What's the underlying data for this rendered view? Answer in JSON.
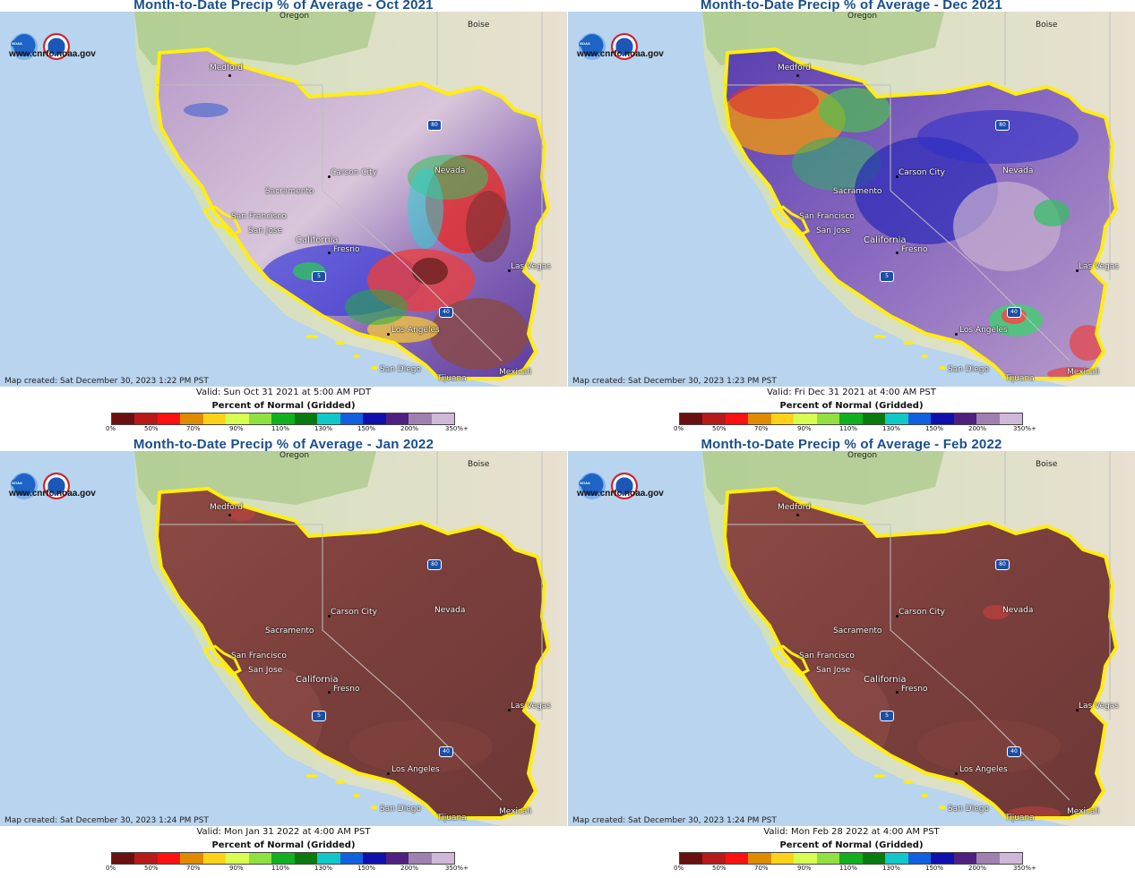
{
  "panels": [
    {
      "title": "Month-to-Date Precip % of Average - Oct 2021",
      "map_created": "Map created: Sat December 30, 2023 1:22 PM PST",
      "valid": "Valid: Sun Oct 31 2021 at 5:00 AM PDT",
      "style": "oct"
    },
    {
      "title": "Month-to-Date Precip % of Average - Dec 2021",
      "map_created": "Map created: Sat December 30, 2023 1:23 PM PST",
      "valid": "Valid: Fri Dec 31 2021 at 4:00 AM PST",
      "style": "dec"
    },
    {
      "title": "Month-to-Date Precip % of Average - Jan 2022",
      "map_created": "Map created: Sat December 30, 2023 1:24 PM PST",
      "valid": "Valid: Mon Jan 31 2022 at 4:00 AM PST",
      "style": "jan"
    },
    {
      "title": "Month-to-Date Precip % of Average - Feb 2022",
      "map_created": "Map created: Sat December 30, 2023 1:24 PM PST",
      "valid": "Valid: Mon Feb 28 2022 at 4:00 AM PST",
      "style": "feb"
    }
  ],
  "common": {
    "url": "www.cnrfc.noaa.gov",
    "noaa_logo_text": "NOAA",
    "nws_logo_text": "NATIONAL WEATHER SERVICE",
    "legend_title": "Percent of Normal (Gridded)",
    "legend_ticks": [
      "0%",
      "50%",
      "70%",
      "90%",
      "110%",
      "130%",
      "150%",
      "200%",
      "350%+"
    ],
    "legend_colors": [
      "#6b1010",
      "#b81a1a",
      "#ff1010",
      "#e08a00",
      "#ffd21a",
      "#d8ff50",
      "#90e040",
      "#10b020",
      "#0a7a10",
      "#10c8c8",
      "#1060e0",
      "#1010b0",
      "#502080",
      "#a080b0",
      "#d0b8d8"
    ],
    "places": {
      "oregon": "Oregon",
      "boise": "Boise",
      "medford": "Medford",
      "carson_city": "Carson City",
      "nevada": "Nevada",
      "sacramento": "Sacramento",
      "san_francisco": "San Francisco",
      "san_jose": "San Jose",
      "california": "California",
      "fresno": "Fresno",
      "las_vegas": "Las Vegas",
      "los_angeles": "Los Angeles",
      "san_diego": "San Diego",
      "tijuana": "Tijuana",
      "mexicali": "Mexicali"
    },
    "interstates": {
      "i80": "80",
      "i5": "5",
      "i40": "40"
    }
  }
}
